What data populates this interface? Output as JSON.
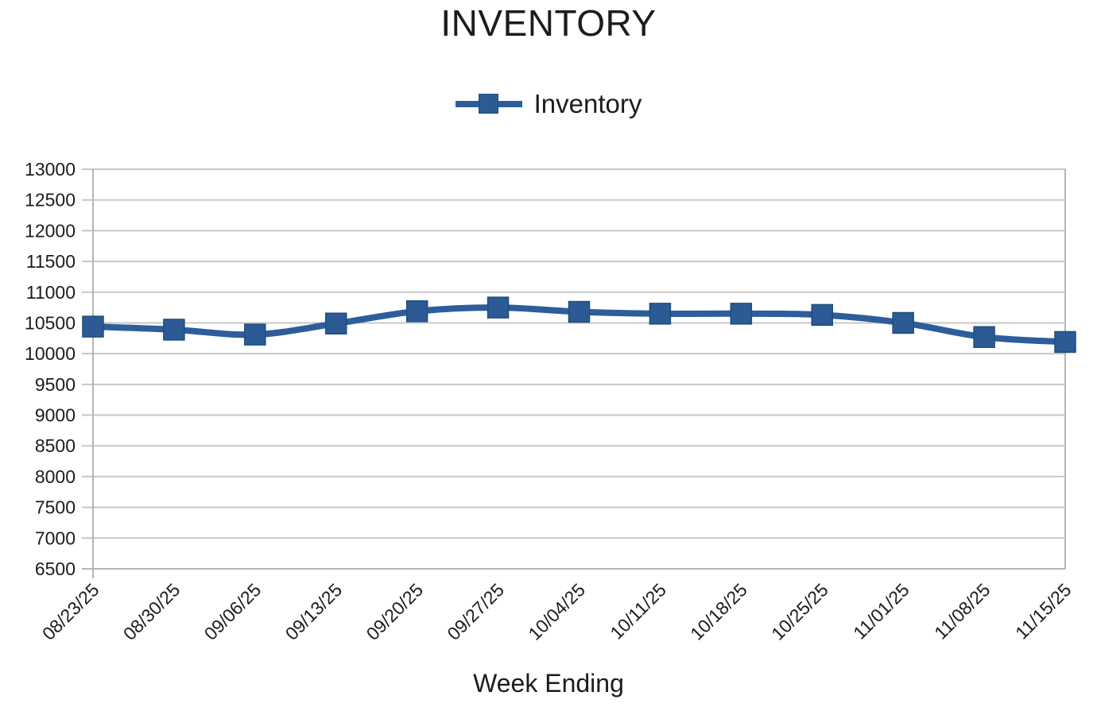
{
  "chart_data": {
    "type": "line",
    "title": "INVENTORY",
    "xlabel": "Week Ending",
    "ylabel": "",
    "categories": [
      "08/23/25",
      "08/30/25",
      "09/06/25",
      "09/13/25",
      "09/20/25",
      "09/27/25",
      "10/04/25",
      "10/11/25",
      "10/18/25",
      "10/25/25",
      "11/01/25",
      "11/08/25",
      "11/15/25"
    ],
    "series": [
      {
        "name": "Inventory",
        "values": [
          10440,
          10390,
          10310,
          10490,
          10690,
          10750,
          10680,
          10650,
          10650,
          10630,
          10500,
          10270,
          10190
        ]
      }
    ],
    "ylim": [
      6500,
      13000
    ],
    "ytick_step": 500,
    "grid": "horizontal",
    "legend_position": "top-center",
    "line_style": "smoothed-with-square-markers",
    "colors": {
      "line": "#2d5d9b",
      "marker_fill": "#2b5a95",
      "marker_border": "#1f4e7c",
      "gridline": "#c7c7c7",
      "axis": "#b5b5b5",
      "text": "#1c1c1c"
    }
  }
}
